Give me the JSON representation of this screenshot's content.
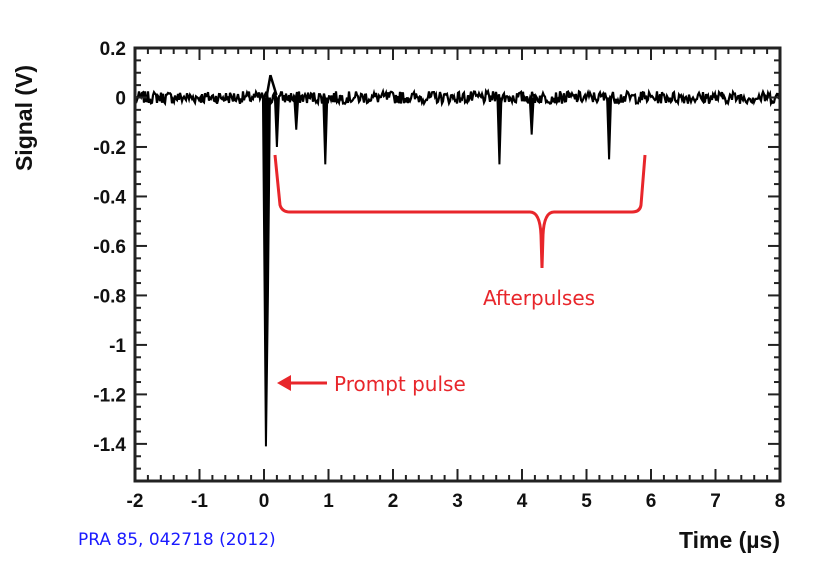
{
  "chart_data": {
    "type": "line",
    "xlabel": "Time (µs)",
    "ylabel": "Signal (V)",
    "xlim": [
      -2,
      8
    ],
    "ylim": [
      -1.55,
      0.2
    ],
    "x_ticks": [
      -2,
      -1,
      0,
      1,
      2,
      3,
      4,
      5,
      6,
      7,
      8
    ],
    "y_ticks": [
      0.2,
      0,
      -0.2,
      -0.4,
      -0.6,
      -0.8,
      -1,
      -1.2,
      -1.4
    ],
    "x_tick_labels": [
      "-2",
      "-1",
      "0",
      "1",
      "2",
      "3",
      "4",
      "5",
      "6",
      "7",
      "8"
    ],
    "y_tick_labels": [
      "0.2",
      "0",
      "-0.2",
      "-0.4",
      "-0.6",
      "-0.8",
      "-1",
      "-1.2",
      "-1.4"
    ],
    "baseline_v": 0,
    "noise_amplitude_v": 0.025,
    "series": [
      {
        "color": "#000000",
        "features": [
          {
            "kind": "prompt_pulse",
            "x": 0.03,
            "min": -1.41
          },
          {
            "kind": "overshoot",
            "x": 0.1,
            "max": 0.09
          },
          {
            "kind": "dip",
            "x": 0.2,
            "min": -0.2
          },
          {
            "kind": "dip",
            "x": 0.5,
            "min": -0.13
          },
          {
            "kind": "dip",
            "x": 0.95,
            "min": -0.27
          },
          {
            "kind": "dip",
            "x": 3.65,
            "min": -0.27
          },
          {
            "kind": "dip",
            "x": 4.15,
            "min": -0.15
          },
          {
            "kind": "dip",
            "x": 5.35,
            "min": -0.25
          }
        ]
      }
    ],
    "grid": false,
    "annotations": [
      {
        "text": "Afterpulses",
        "color": "#e8262b"
      },
      {
        "text": "Prompt pulse",
        "color": "#e8262b"
      }
    ]
  },
  "citation": "PRA 85, 042718 (2012)"
}
